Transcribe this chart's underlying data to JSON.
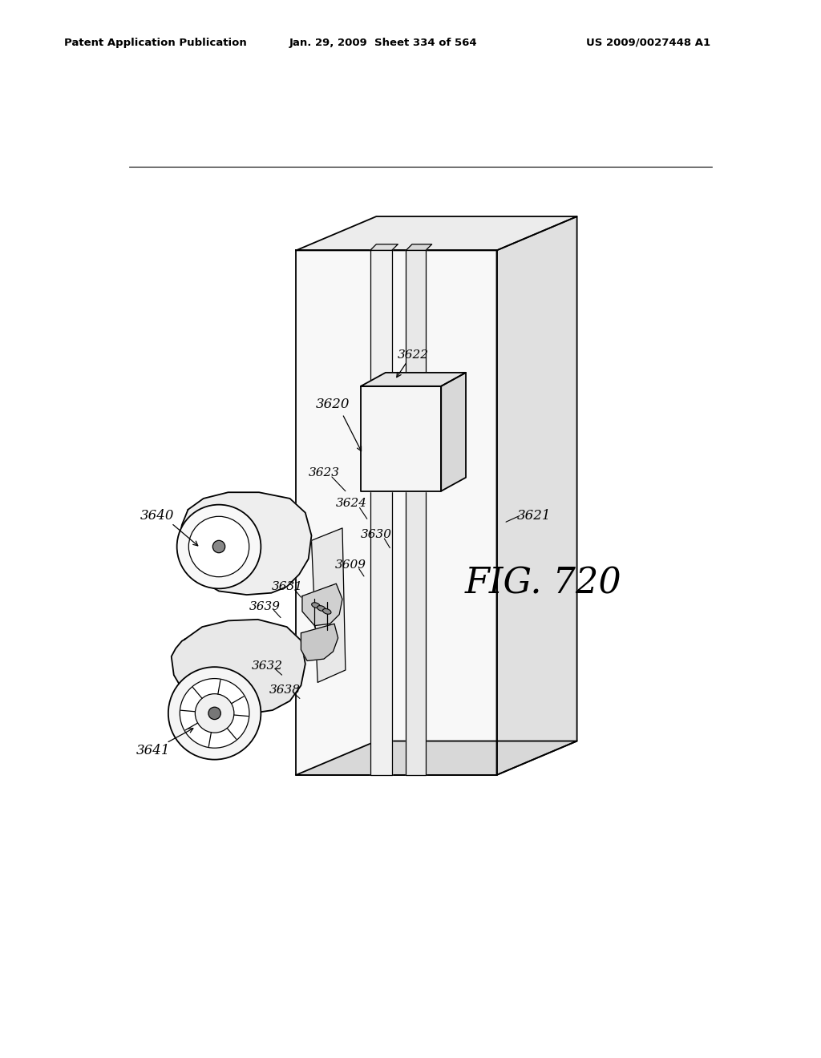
{
  "header_left": "Patent Application Publication",
  "header_mid": "Jan. 29, 2009  Sheet 334 of 564",
  "header_right": "US 2009/0027448 A1",
  "fig_label": "FIG. 720",
  "background_color": "#ffffff",
  "line_color": "#000000",
  "lw_main": 1.3,
  "lw_thin": 0.9,
  "lw_leader": 0.8
}
